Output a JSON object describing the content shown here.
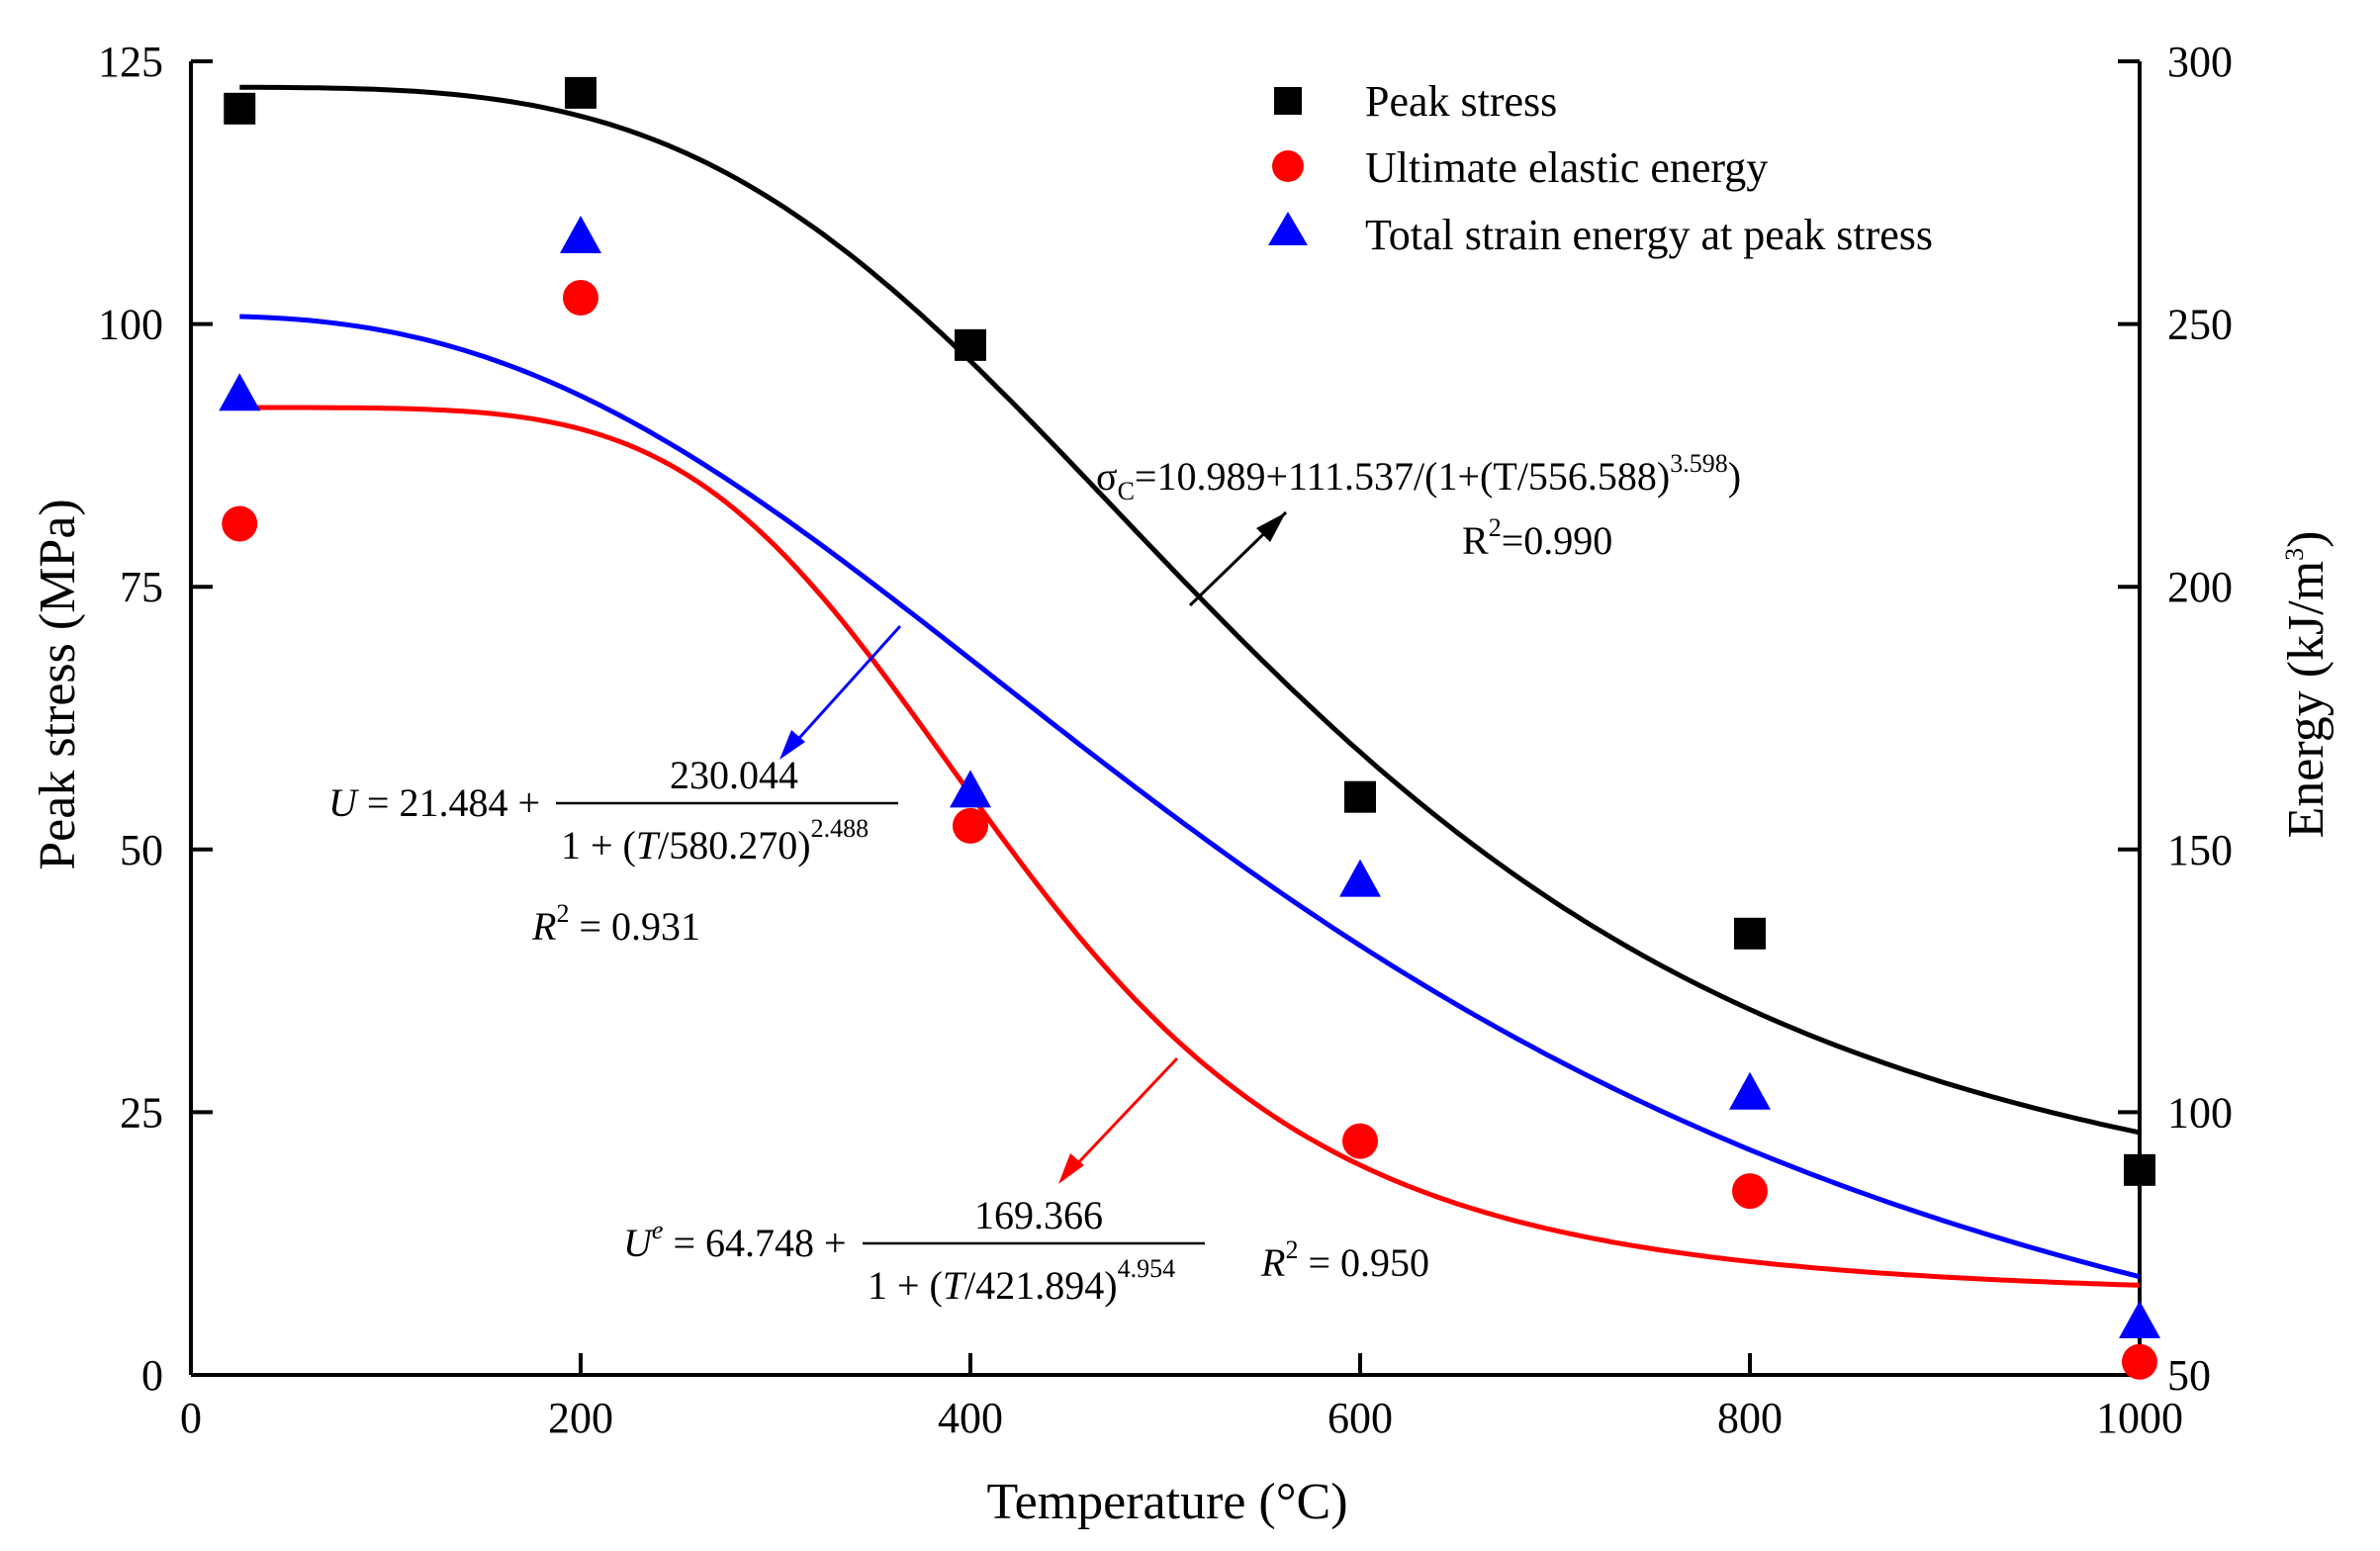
{
  "chart_data": {
    "type": "scatter",
    "x_axis": {
      "label": "Temperature (°C)",
      "range": [
        0,
        1000
      ],
      "ticks": [
        0,
        200,
        400,
        600,
        800,
        1000
      ]
    },
    "y_axis_left": {
      "label": "Peak stress (MPa)",
      "range": [
        0,
        125
      ],
      "ticks": [
        0,
        25,
        50,
        75,
        100,
        125
      ]
    },
    "y_axis_right": {
      "label": "Energy (kJ/m",
      "label_sup": "3",
      "label_tail": ")",
      "range": [
        50,
        300
      ],
      "ticks": [
        50,
        100,
        150,
        200,
        250,
        300
      ]
    },
    "legend_position": "top-right",
    "series": [
      {
        "name": "Peak stress",
        "marker": "square",
        "color": "#000000",
        "axis": "left",
        "points": [
          [
            25,
            120.5
          ],
          [
            200,
            122
          ],
          [
            400,
            98
          ],
          [
            600,
            55
          ],
          [
            800,
            42
          ],
          [
            1000,
            19.5
          ]
        ],
        "fit": {
          "a": 10.989,
          "b": 111.537,
          "t0": 556.588,
          "p": 3.598,
          "range": [
            25,
            1000
          ]
        }
      },
      {
        "name": "Ultimate elastic energy",
        "marker": "circle",
        "color": "#ff0000",
        "axis": "right",
        "points": [
          [
            25,
            212
          ],
          [
            200,
            255
          ],
          [
            400,
            154.5
          ],
          [
            600,
            94.5
          ],
          [
            800,
            85
          ],
          [
            1000,
            52.5
          ]
        ],
        "fit": {
          "a": 64.748,
          "b": 169.366,
          "t0": 421.894,
          "p": 4.954,
          "range": [
            25,
            1000
          ]
        }
      },
      {
        "name": "Total strain energy at peak stress",
        "marker": "triangle",
        "color": "#0000ff",
        "axis": "right",
        "points": [
          [
            25,
            236.5
          ],
          [
            200,
            266.5
          ],
          [
            400,
            161
          ],
          [
            600,
            144
          ],
          [
            800,
            103.5
          ],
          [
            1000,
            60
          ]
        ],
        "fit": {
          "a": 21.484,
          "b": 230.044,
          "t0": 580.27,
          "p": 2.488,
          "range": [
            25,
            1000
          ]
        }
      }
    ],
    "annotations": {
      "stress_eq": {
        "sigma": "σ",
        "sub": "C",
        "mid": "=10.989+111.537/(1+(T/556.588)",
        "sup": "3.598",
        "tail": ")",
        "r2_head": "R",
        "r2_sup": "2",
        "r2_tail": "=0.990",
        "color": "#000000"
      },
      "total_eq": {
        "lhs_var": "U",
        "lhs_rest": " = 21.484 +",
        "numerator": "230.044",
        "den_head": "1 + (",
        "den_var": "T",
        "den_mid": "/580.270)",
        "den_sup": "2.488",
        "r2_var": "R",
        "r2_sup": "2",
        "r2_tail": " = 0.931",
        "color": "#0000ff"
      },
      "elastic_eq": {
        "lhs_var": "U",
        "lhs_sup": "e",
        "lhs_rest": " = 64.748 +",
        "numerator": "169.366",
        "den_head": "1 + (",
        "den_var": "T",
        "den_mid": "/421.894)",
        "den_sup": "4.954",
        "r2_var": "R",
        "r2_sup": "2",
        "r2_tail": " = 0.950",
        "color": "#ff0000"
      }
    }
  }
}
